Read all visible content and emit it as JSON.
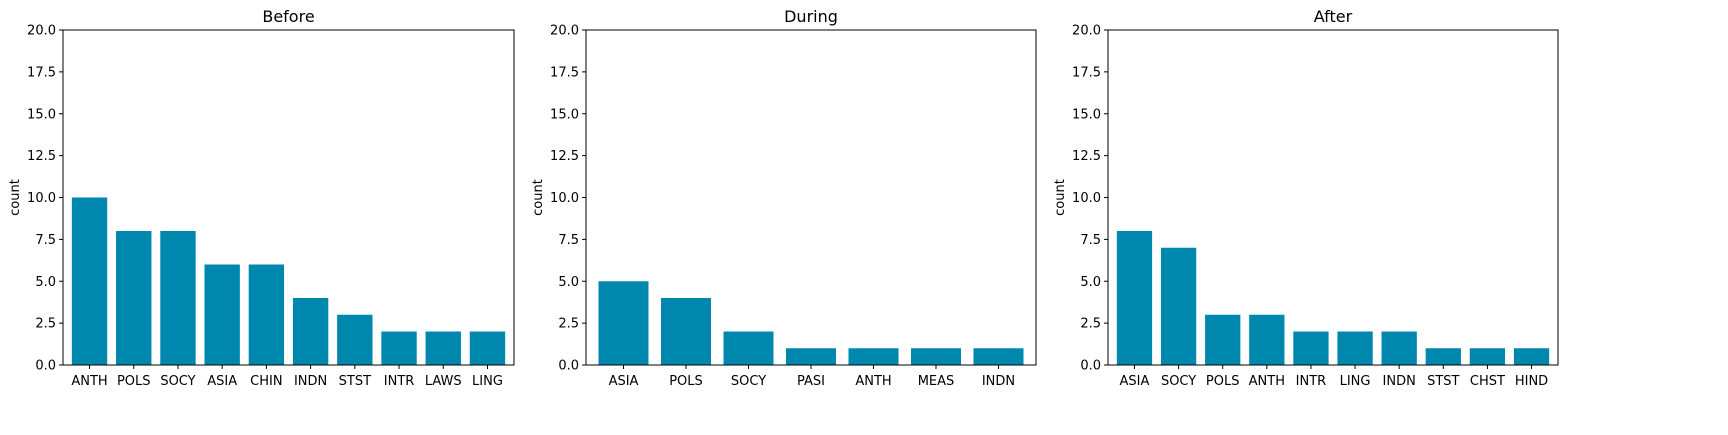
{
  "colors": {
    "bar": "#0087AE",
    "axis": "#000000",
    "background": "#ffffff"
  },
  "chart_data": [
    {
      "type": "bar",
      "title": "Before",
      "xlabel": "",
      "ylabel": "count",
      "ylim": [
        0,
        20
      ],
      "yticks": [
        "0.0",
        "2.5",
        "5.0",
        "7.5",
        "10.0",
        "12.5",
        "15.0",
        "17.5",
        "20.0"
      ],
      "categories": [
        "ANTH",
        "POLS",
        "SOCY",
        "ASIA",
        "CHIN",
        "INDN",
        "STST",
        "INTR",
        "LAWS",
        "LING"
      ],
      "values": [
        10,
        8,
        8,
        6,
        6,
        4,
        3,
        2,
        2,
        2
      ],
      "grid": false
    },
    {
      "type": "bar",
      "title": "During",
      "xlabel": "",
      "ylabel": "count",
      "ylim": [
        0,
        20
      ],
      "yticks": [
        "0.0",
        "2.5",
        "5.0",
        "7.5",
        "10.0",
        "12.5",
        "15.0",
        "17.5",
        "20.0"
      ],
      "categories": [
        "ASIA",
        "POLS",
        "SOCY",
        "PASI",
        "ANTH",
        "MEAS",
        "INDN"
      ],
      "values": [
        5,
        4,
        2,
        1,
        1,
        1,
        1
      ],
      "grid": false
    },
    {
      "type": "bar",
      "title": "After",
      "xlabel": "",
      "ylabel": "count",
      "ylim": [
        0,
        20
      ],
      "yticks": [
        "0.0",
        "2.5",
        "5.0",
        "7.5",
        "10.0",
        "12.5",
        "15.0",
        "17.5",
        "20.0"
      ],
      "categories": [
        "ASIA",
        "SOCY",
        "POLS",
        "ANTH",
        "INTR",
        "LING",
        "INDN",
        "STST",
        "CHST",
        "HIND"
      ],
      "values": [
        8,
        7,
        3,
        3,
        2,
        2,
        2,
        1,
        1,
        1
      ],
      "grid": false
    }
  ]
}
